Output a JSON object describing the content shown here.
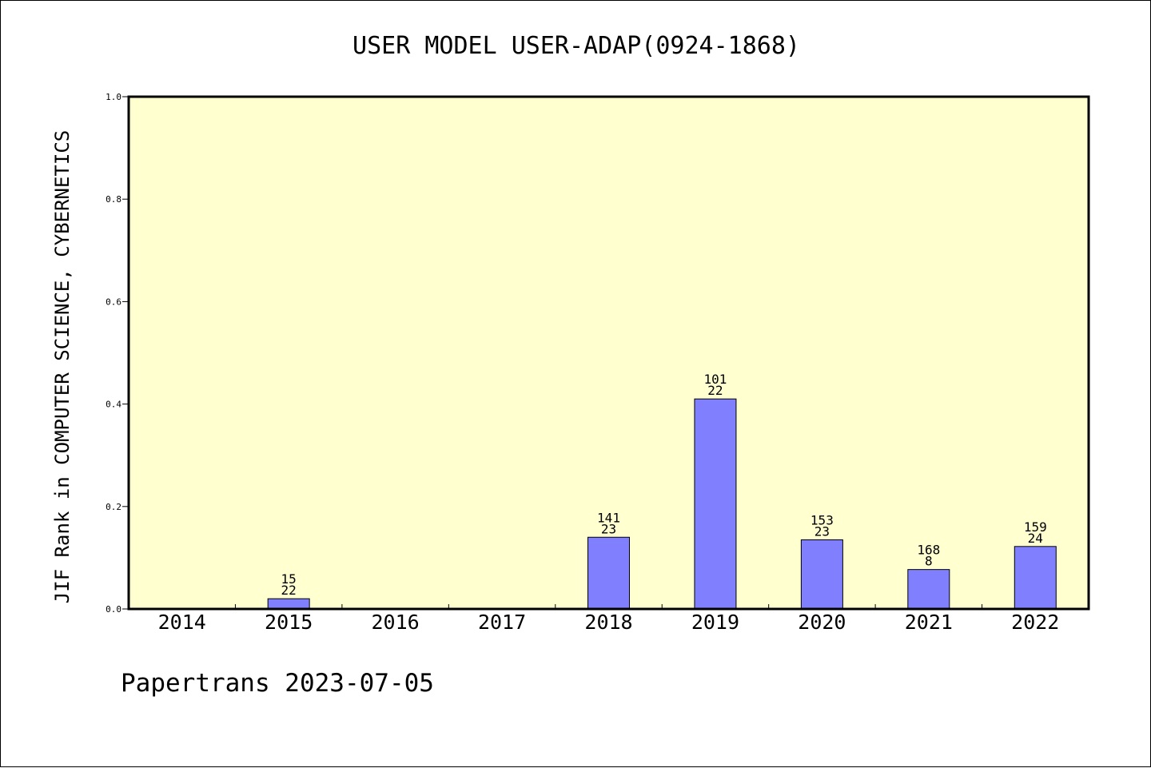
{
  "chart_data": {
    "type": "bar",
    "title": "USER MODEL USER-ADAP(0924-1868)",
    "ylabel": "JIF Rank in COMPUTER SCIENCE, CYBERNETICS",
    "xlabel": "",
    "ylim": [
      0,
      1.0
    ],
    "yticks": [
      "0.0",
      "0.2",
      "0.4",
      "0.6",
      "0.8",
      "1.0"
    ],
    "categories": [
      "2014",
      "2015",
      "2016",
      "2017",
      "2018",
      "2019",
      "2020",
      "2021",
      "2022"
    ],
    "values": [
      null,
      0.02,
      null,
      null,
      0.14,
      0.41,
      0.135,
      0.077,
      0.122
    ],
    "rank_labels": [
      null,
      "15",
      null,
      null,
      "141",
      "101",
      "153",
      "168",
      "159"
    ],
    "count_labels": [
      null,
      "22",
      null,
      null,
      "23",
      "22",
      "23",
      "8",
      "24"
    ],
    "bar_color": "#8080ff",
    "plot_background": "#ffffd0",
    "grid": false,
    "legend": "none"
  },
  "footer": {
    "text": "Papertrans 2023-07-05"
  }
}
